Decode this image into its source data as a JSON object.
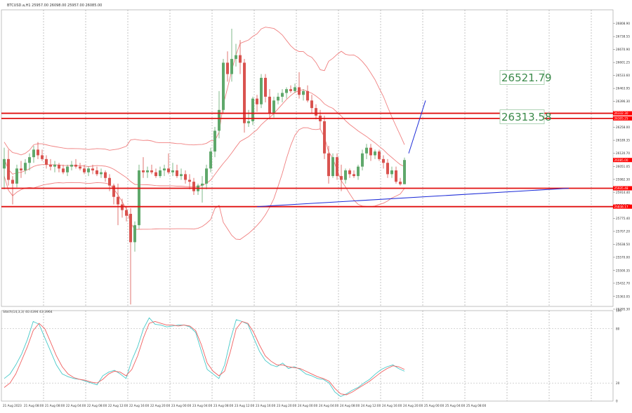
{
  "header": {
    "symbol_info": "BTCUSD.a,H1  25957.00  26098.00  25957.00  26085.00"
  },
  "indicator_header": {
    "label": "Stoch(14,3,3) 40.4394 43.3964"
  },
  "chart_data": [
    {
      "type": "candlestick",
      "title": "",
      "ylim": [
        25310,
        26880
      ],
      "y_ticks": [
        "26808.90",
        "26738.55",
        "26670.90",
        "26601.25",
        "26533.60",
        "26463.95",
        "26396.30",
        "26326.65",
        "26258.00",
        "26189.35",
        "26120.70",
        "26051.05",
        "25982.30",
        "25914.40",
        "25844.75",
        "25775.40",
        "25707.20",
        "25638.50",
        "25570.00",
        "25500.35",
        "25432.70",
        "25363.05",
        "25295.30"
      ],
      "x_ticks": [
        "21 Aug 2023",
        "21 Aug 08:00",
        "21 Aug 08:00",
        "22 Aug 04:00",
        "22 Aug 08:00",
        "22 Aug 12:00",
        "22 Aug 16:00",
        "22 Aug 20:00",
        "23 Aug 00:00",
        "23 Aug 04:00",
        "23 Aug 08:00",
        "23 Aug 12:00",
        "23 Aug 16:00",
        "23 Aug 20:00",
        "24 Aug 00:00",
        "24 Aug 04:00",
        "24 Aug 08:00",
        "24 Aug 12:00",
        "24 Aug 16:00",
        "24 Aug 20:00",
        "25 Aug 00:00",
        "25 Aug 04:00",
        "25 Aug 08:00"
      ],
      "candles": [
        [
          26040,
          26150,
          25930,
          26090
        ],
        [
          26090,
          26140,
          25950,
          25980
        ],
        [
          25980,
          26000,
          25850,
          25960
        ],
        [
          25960,
          26060,
          25940,
          26040
        ],
        [
          26040,
          26080,
          25990,
          26030
        ],
        [
          26030,
          26090,
          26010,
          26070
        ],
        [
          26070,
          26120,
          26030,
          26100
        ],
        [
          26100,
          26160,
          26070,
          26140
        ],
        [
          26140,
          26180,
          26090,
          26110
        ],
        [
          26110,
          26140,
          26080,
          26090
        ],
        [
          26090,
          26110,
          26040,
          26060
        ],
        [
          26060,
          26090,
          26030,
          26050
        ],
        [
          26050,
          26080,
          26020,
          26060
        ],
        [
          26060,
          26070,
          26020,
          26040
        ],
        [
          26040,
          26060,
          26010,
          26020
        ],
        [
          26020,
          26060,
          26000,
          26050
        ],
        [
          26050,
          26080,
          26030,
          26060
        ],
        [
          26060,
          26090,
          26040,
          26050
        ],
        [
          26050,
          26070,
          26030,
          26040
        ],
        [
          26040,
          26060,
          26010,
          26020
        ],
        [
          26020,
          26050,
          26000,
          26040
        ],
        [
          26040,
          26060,
          26010,
          26030
        ],
        [
          26030,
          26050,
          26000,
          26010
        ],
        [
          26010,
          26040,
          25990,
          26020
        ],
        [
          26020,
          26030,
          25970,
          25990
        ],
        [
          25990,
          26010,
          25920,
          25950
        ],
        [
          25950,
          25960,
          25850,
          25890
        ],
        [
          25890,
          25960,
          25740,
          25850
        ],
        [
          25850,
          25880,
          25780,
          25820
        ],
        [
          25820,
          25840,
          25760,
          25790
        ],
        [
          25800,
          25830,
          25320,
          25650
        ],
        [
          25650,
          25760,
          25600,
          25740
        ],
        [
          25740,
          26060,
          25720,
          26030
        ],
        [
          26030,
          26100,
          25990,
          26020
        ],
        [
          26020,
          26050,
          25990,
          26030
        ],
        [
          26030,
          26060,
          26010,
          26020
        ],
        [
          26020,
          26040,
          25990,
          26000
        ],
        [
          26000,
          26050,
          25990,
          26030
        ],
        [
          26030,
          26060,
          26000,
          26040
        ],
        [
          26040,
          26120,
          26010,
          26020
        ],
        [
          26020,
          26070,
          26000,
          26030
        ],
        [
          26030,
          26060,
          25990,
          26000
        ],
        [
          26000,
          26040,
          25980,
          26010
        ],
        [
          26010,
          26030,
          25960,
          25980
        ],
        [
          25980,
          26010,
          25930,
          25970
        ],
        [
          25970,
          25990,
          25900,
          25920
        ],
        [
          25920,
          25960,
          25900,
          25950
        ],
        [
          25950,
          26000,
          25860,
          25960
        ],
        [
          25960,
          26060,
          25930,
          26040
        ],
        [
          26040,
          26150,
          26020,
          26130
        ],
        [
          26130,
          26260,
          26100,
          26240
        ],
        [
          26240,
          26450,
          26200,
          26350
        ],
        [
          26350,
          26620,
          26330,
          26600
        ],
        [
          26600,
          26660,
          26500,
          26540
        ],
        [
          26540,
          26780,
          26500,
          26620
        ],
        [
          26620,
          26700,
          26580,
          26640
        ],
        [
          26640,
          26720,
          26540,
          26600
        ],
        [
          26600,
          26620,
          26230,
          26280
        ],
        [
          26280,
          26350,
          26260,
          26290
        ],
        [
          26290,
          26420,
          26270,
          26410
        ],
        [
          26410,
          26430,
          26340,
          26380
        ],
        [
          26380,
          26540,
          26360,
          26520
        ],
        [
          26520,
          26540,
          26390,
          26420
        ],
        [
          26420,
          26460,
          26300,
          26330
        ],
        [
          26330,
          26420,
          26310,
          26400
        ],
        [
          26400,
          26440,
          26380,
          26420
        ],
        [
          26420,
          26460,
          26390,
          26440
        ],
        [
          26440,
          26470,
          26410,
          26460
        ],
        [
          26460,
          26480,
          26440,
          26450
        ],
        [
          26450,
          26490,
          26440,
          26470
        ],
        [
          26470,
          26550,
          26410,
          26430
        ],
        [
          26430,
          26460,
          26400,
          26450
        ],
        [
          26450,
          26480,
          26390,
          26400
        ],
        [
          26400,
          26430,
          26330,
          26360
        ],
        [
          26360,
          26380,
          26300,
          26320
        ],
        [
          26320,
          26350,
          26250,
          26290
        ],
        [
          26290,
          26320,
          26090,
          26120
        ],
        [
          26120,
          26160,
          25960,
          26000
        ],
        [
          26000,
          26120,
          25990,
          26100
        ],
        [
          26100,
          26120,
          25980,
          26000
        ],
        [
          26000,
          26060,
          25920,
          25980
        ],
        [
          25980,
          26040,
          25960,
          26030
        ],
        [
          26030,
          26040,
          25990,
          26010
        ],
        [
          26010,
          26030,
          25990,
          26000
        ],
        [
          26000,
          26060,
          25980,
          26050
        ],
        [
          26050,
          26140,
          26030,
          26120
        ],
        [
          26120,
          26170,
          26090,
          26150
        ],
        [
          26150,
          26170,
          26080,
          26110
        ],
        [
          26110,
          26140,
          26090,
          26130
        ],
        [
          26130,
          26140,
          26080,
          26090
        ],
        [
          26090,
          26110,
          26040,
          26070
        ],
        [
          26070,
          26090,
          25990,
          26010
        ],
        [
          26010,
          26050,
          25990,
          26030
        ],
        [
          26030,
          26050,
          25960,
          25970
        ],
        [
          25970,
          25990,
          25950,
          25957
        ],
        [
          25957,
          26098,
          25957,
          26085
        ]
      ],
      "horizontal_lines": [
        26332.3,
        26305.25,
        25935.48,
        25838.17
      ],
      "price_labels": [
        {
          "price": 26332.3,
          "text": "26332.30",
          "color": "#ff0000"
        },
        {
          "price": 26305.25,
          "text": "26305.25",
          "color": "#ff0000"
        },
        {
          "price": 26085.0,
          "text": "26085.00",
          "color": "#ff0000"
        },
        {
          "price": 25935.48,
          "text": "25935.48",
          "color": "#ff0000"
        },
        {
          "price": 25838.17,
          "text": "25838.17",
          "color": "#ff0000"
        }
      ],
      "targets": [
        {
          "price": 26521.79,
          "text": "26521.79"
        },
        {
          "price": 26313.58,
          "text": "26313.58"
        }
      ],
      "colors": {
        "bull": "#5fa86b",
        "bear": "#d9534f",
        "band": "#f08080",
        "level": "#e01010",
        "trend": "#1e2dd8",
        "target_text": "#3b8a4a"
      }
    },
    {
      "type": "line",
      "title": "",
      "ylim": [
        0,
        100
      ],
      "y_ticks": [
        "100",
        "80",
        "20",
        "0"
      ],
      "series": [
        {
          "color": "#48c9c9",
          "values": [
            25,
            30,
            40,
            52,
            68,
            88,
            85,
            70,
            55,
            40,
            30,
            27,
            25,
            24,
            22,
            20,
            18,
            28,
            32,
            34,
            30,
            25,
            45,
            60,
            80,
            92,
            85,
            84,
            82,
            83,
            84,
            84,
            82,
            76,
            55,
            35,
            30,
            25,
            40,
            68,
            90,
            88,
            85,
            70,
            55,
            45,
            40,
            38,
            42,
            36,
            38,
            35,
            30,
            28,
            25,
            24,
            20,
            10,
            5,
            8,
            12,
            15,
            20,
            24,
            30,
            35,
            38,
            40,
            36,
            33
          ]
        },
        {
          "color": "#f06060",
          "values": [
            15,
            20,
            30,
            45,
            60,
            78,
            86,
            80,
            65,
            50,
            38,
            30,
            26,
            24,
            23,
            21,
            20,
            24,
            30,
            33,
            32,
            28,
            35,
            50,
            70,
            86,
            88,
            86,
            84,
            84,
            83,
            84,
            83,
            78,
            62,
            42,
            33,
            28,
            33,
            55,
            80,
            88,
            86,
            76,
            62,
            50,
            44,
            40,
            40,
            38,
            37,
            36,
            33,
            30,
            27,
            25,
            22,
            14,
            8,
            7,
            10,
            14,
            18,
            22,
            27,
            32,
            36,
            39,
            38,
            35
          ]
        }
      ]
    }
  ]
}
